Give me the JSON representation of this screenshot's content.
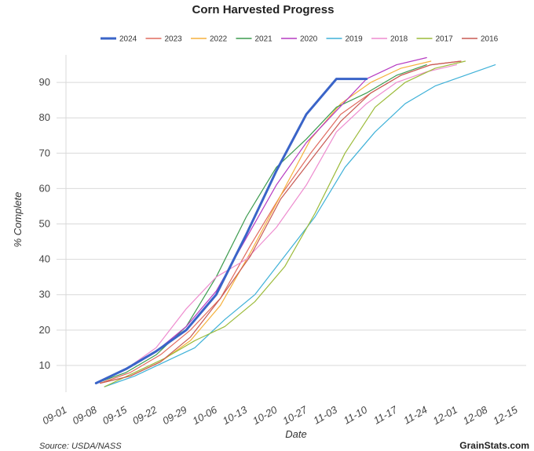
{
  "chart_data": {
    "type": "line",
    "title": "Corn Harvested Progress",
    "xlabel": "Date",
    "ylabel": "% Complete",
    "x_ticks": [
      "09-01",
      "09-08",
      "09-15",
      "09-22",
      "09-29",
      "10-06",
      "10-13",
      "10-20",
      "10-27",
      "11-03",
      "11-10",
      "11-17",
      "11-24",
      "12-01",
      "12-08",
      "12-15"
    ],
    "x_domain_days": [
      0,
      105
    ],
    "y_ticks": [
      10,
      20,
      30,
      40,
      50,
      60,
      70,
      80,
      90
    ],
    "ylim": [
      2,
      100
    ],
    "grid": true,
    "legend_position": "top",
    "series": [
      {
        "name": "2024",
        "color": "#3a64c8",
        "width": 3,
        "x": [
          7,
          14,
          21,
          28,
          35,
          42,
          49,
          56,
          63,
          70
        ],
        "y": [
          5,
          9,
          14,
          20,
          30,
          47,
          65,
          81,
          91,
          91
        ]
      },
      {
        "name": "2023",
        "color": "#e06b5f",
        "width": 1.2,
        "x": [
          8,
          15,
          22,
          29,
          36,
          43,
          50,
          57,
          64,
          71,
          78,
          85,
          92
        ],
        "y": [
          5,
          8,
          13,
          20,
          29,
          44,
          58,
          70,
          81,
          87,
          92,
          95,
          96
        ]
      },
      {
        "name": "2022",
        "color": "#f5b13d",
        "width": 1.2,
        "x": [
          8,
          15,
          22,
          29,
          36,
          43,
          50,
          57,
          64,
          71,
          78,
          85
        ],
        "y": [
          5,
          7,
          11,
          17,
          27,
          42,
          58,
          74,
          84,
          90,
          94,
          96
        ]
      },
      {
        "name": "2021",
        "color": "#3c9b4e",
        "width": 1.2,
        "x": [
          7,
          14,
          21,
          28,
          35,
          42,
          49,
          56,
          63,
          70,
          77,
          84
        ],
        "y": [
          5,
          8,
          13,
          21,
          35,
          52,
          66,
          74,
          83,
          87,
          92,
          95
        ]
      },
      {
        "name": "2020",
        "color": "#b63bc2",
        "width": 1.2,
        "x": [
          7,
          14,
          21,
          28,
          35,
          42,
          49,
          56,
          63,
          70,
          77,
          84
        ],
        "y": [
          5,
          9,
          14,
          21,
          31,
          46,
          61,
          73,
          82,
          91,
          95,
          97
        ]
      },
      {
        "name": "2019",
        "color": "#3fb1d8",
        "width": 1.2,
        "x": [
          9,
          16,
          23,
          30,
          37,
          44,
          51,
          58,
          65,
          72,
          79,
          86,
          93,
          100
        ],
        "y": [
          4,
          7,
          11,
          15,
          23,
          30,
          41,
          52,
          66,
          76,
          84,
          89,
          92,
          95
        ]
      },
      {
        "name": "2018",
        "color": "#ee8ccf",
        "width": 1.2,
        "x": [
          7,
          14,
          21,
          28,
          35,
          42,
          49,
          56,
          63,
          70,
          77,
          84,
          91
        ],
        "y": [
          5,
          9,
          15,
          26,
          35,
          40,
          49,
          61,
          76,
          84,
          90,
          93,
          95
        ]
      },
      {
        "name": "2017",
        "color": "#9cbb3a",
        "width": 1.2,
        "x": [
          9,
          16,
          23,
          30,
          37,
          44,
          51,
          58,
          65,
          72,
          79,
          86,
          93
        ],
        "y": [
          4,
          8,
          12,
          17,
          21,
          28,
          38,
          53,
          70,
          83,
          90,
          94,
          96
        ]
      },
      {
        "name": "2016",
        "color": "#c85a54",
        "width": 1.2,
        "x": [
          8,
          15,
          22,
          29,
          36,
          43,
          50,
          57,
          64,
          71,
          78,
          85,
          92
        ],
        "y": [
          5,
          7,
          11,
          18,
          29,
          41,
          57,
          68,
          79,
          87,
          92,
          95,
          96
        ]
      }
    ]
  },
  "footer": {
    "source": "Source: USDA/NASS",
    "brand": "GrainStats.com"
  }
}
